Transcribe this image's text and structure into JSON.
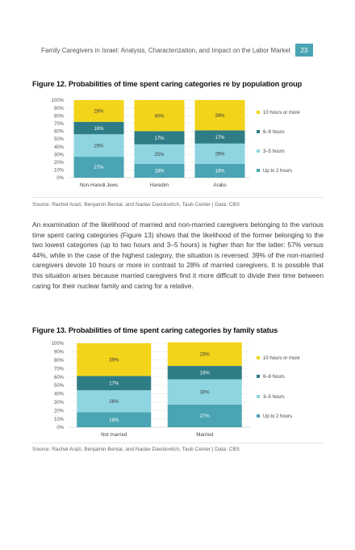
{
  "header": {
    "running_title": "Family Caregivers in Israel: Analysis, Characterization, and Impact on the Labor Market",
    "page_number": "23"
  },
  "colors": {
    "ten_plus": "#f2d41a",
    "six_nine": "#2e7d86",
    "three_five": "#8fd4e1",
    "up_to_two": "#4aa4b3",
    "accent": "#4aa4b3"
  },
  "figure12": {
    "title": "Figure 12. Probabilities of time spent caring categories re by population group",
    "source": "Source: Rachel Arazi, Benjamin Bental, and Nadav Davidovitch, Taub Center | Data: CBS"
  },
  "paragraph": "An examination of the likelihood of married and non-married caregivers belonging to the various time spent caring categories (Figure 13) shows that the likelihood of the former belonging to the two lowest categories (up to two hours and 3–5 hours) is higher than for the latter: 57% versus 44%, while in the case of the highest category, the situation is reversed: 39% of the non-married caregivers devote 10 hours or more in contrast to 28% of married caregivers. It is possible that this situation arises because married caregivers find it more difficult to divide their time between caring for their nuclear family and caring for a relative.",
  "figure13": {
    "title": "Figure 13. Probabilities of time spent caring categories by family status",
    "source": "Source: Rachel Arazi, Benjamin Bental, and Nadav Davidovitch, Taub Center | Data: CBS"
  },
  "chart_data": [
    {
      "type": "bar",
      "stacked": true,
      "categories": [
        "Non-Haredi Jews",
        "Haredim",
        "Arabs"
      ],
      "series": [
        {
          "name": "Up to 2 hours",
          "values": [
            27,
            18,
            18
          ]
        },
        {
          "name": "3–5 hours",
          "values": [
            29,
            25,
            26
          ]
        },
        {
          "name": "6–9 hours",
          "values": [
            16,
            17,
            17
          ]
        },
        {
          "name": "10 hours or more",
          "values": [
            28,
            40,
            39
          ]
        }
      ],
      "y_ticks": [
        "0%",
        "10%",
        "20%",
        "30%",
        "40%",
        "50%",
        "60%",
        "70%",
        "80%",
        "90%",
        "100%"
      ],
      "ylim": [
        0,
        100
      ],
      "grid": true,
      "legend": "right"
    },
    {
      "type": "bar",
      "stacked": true,
      "categories": [
        "Not married",
        "Married"
      ],
      "series": [
        {
          "name": "Up to 2 hours",
          "values": [
            18,
            27
          ]
        },
        {
          "name": "3–5 hours",
          "values": [
            26,
            30
          ]
        },
        {
          "name": "6–9 hours",
          "values": [
            17,
            16
          ]
        },
        {
          "name": "10 hours or more",
          "values": [
            39,
            28
          ]
        }
      ],
      "y_ticks": [
        "0%",
        "10%",
        "20%",
        "30%",
        "40%",
        "50%",
        "60%",
        "70%",
        "80%",
        "90%",
        "100%"
      ],
      "ylim": [
        0,
        100
      ],
      "grid": true,
      "legend": "right"
    }
  ]
}
